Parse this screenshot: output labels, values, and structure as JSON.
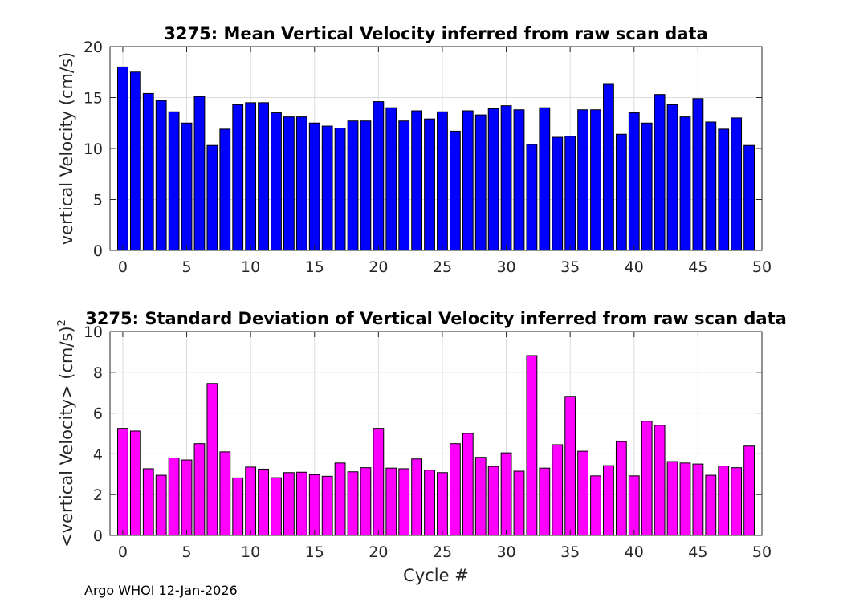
{
  "chart_data": [
    {
      "type": "bar",
      "title": "3275: Mean Vertical Velocity inferred from raw scan data",
      "xlabel": "",
      "ylabel": "vertical Velocity (cm/s)",
      "xlim": [
        -1,
        50
      ],
      "ylim": [
        0,
        20
      ],
      "xticks": [
        0,
        5,
        10,
        15,
        20,
        25,
        30,
        35,
        40,
        45,
        50
      ],
      "yticks": [
        0,
        5,
        10,
        15,
        20
      ],
      "grid": true,
      "bar_color": "#0000ff",
      "x": [
        0,
        1,
        2,
        3,
        4,
        5,
        6,
        7,
        8,
        9,
        10,
        11,
        12,
        13,
        14,
        15,
        16,
        17,
        18,
        19,
        20,
        21,
        22,
        23,
        24,
        25,
        26,
        27,
        28,
        29,
        30,
        31,
        32,
        33,
        34,
        35,
        36,
        37,
        38,
        39,
        40,
        41,
        42,
        43,
        44,
        45,
        46,
        47,
        48,
        49
      ],
      "values": [
        18.0,
        17.5,
        15.4,
        14.7,
        13.6,
        12.5,
        15.1,
        10.3,
        11.9,
        14.3,
        14.5,
        14.5,
        13.5,
        13.1,
        13.1,
        12.5,
        12.2,
        12.0,
        12.7,
        12.7,
        14.6,
        14.0,
        12.7,
        13.7,
        12.9,
        13.6,
        11.7,
        13.7,
        13.3,
        13.9,
        14.2,
        13.8,
        10.4,
        14.0,
        11.1,
        11.2,
        13.8,
        13.8,
        16.3,
        11.4,
        13.5,
        12.5,
        15.3,
        14.3,
        13.1,
        14.9,
        12.6,
        11.9,
        13.0,
        10.3
      ]
    },
    {
      "type": "bar",
      "title": "3275: Standard Deviation of Vertical Velocity inferred from raw scan data",
      "xlabel": "Cycle #",
      "ylabel": "<vertical Velocity> (cm/s)",
      "ylabel_superscript": "2",
      "xlim": [
        -1,
        50
      ],
      "ylim": [
        0,
        10
      ],
      "xticks": [
        0,
        5,
        10,
        15,
        20,
        25,
        30,
        35,
        40,
        45,
        50
      ],
      "yticks": [
        0,
        2,
        4,
        6,
        8,
        10
      ],
      "grid": true,
      "bar_color": "#ff00ff",
      "x": [
        0,
        1,
        2,
        3,
        4,
        5,
        6,
        7,
        8,
        9,
        10,
        11,
        12,
        13,
        14,
        15,
        16,
        17,
        18,
        19,
        20,
        21,
        22,
        23,
        24,
        25,
        26,
        27,
        28,
        29,
        30,
        31,
        32,
        33,
        34,
        35,
        36,
        37,
        38,
        39,
        40,
        41,
        42,
        43,
        44,
        45,
        46,
        47,
        48,
        49
      ],
      "values": [
        5.25,
        5.12,
        3.27,
        2.95,
        3.8,
        3.7,
        4.5,
        7.45,
        4.1,
        2.82,
        3.35,
        3.25,
        2.83,
        3.08,
        3.1,
        2.98,
        2.9,
        3.55,
        3.12,
        3.32,
        5.25,
        3.3,
        3.27,
        3.75,
        3.2,
        3.08,
        4.5,
        5.0,
        3.83,
        3.38,
        4.05,
        3.15,
        8.82,
        3.3,
        4.45,
        6.82,
        4.13,
        2.92,
        3.42,
        4.6,
        2.92,
        5.6,
        5.4,
        3.62,
        3.55,
        3.5,
        2.95,
        3.4,
        3.32,
        4.38
      ]
    }
  ],
  "footer": "Argo WHOI 12-Jan-2026"
}
